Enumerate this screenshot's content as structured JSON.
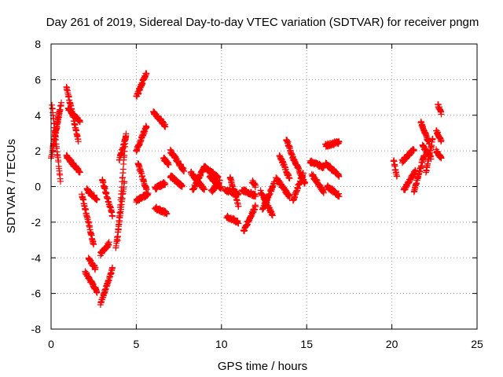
{
  "chart_data": {
    "type": "scatter",
    "title": "Day 261 of 2019, Sidereal Day-to-day VTEC variation (SDTVAR) for receiver pngm",
    "xlabel": "GPS time / hours",
    "ylabel": "SDTVAR / TECUs",
    "xlim": [
      0,
      25
    ],
    "ylim": [
      -8,
      8
    ],
    "xticks": [
      0,
      5,
      10,
      15,
      20,
      25
    ],
    "yticks": [
      -8,
      -6,
      -4,
      -2,
      0,
      2,
      4,
      6,
      8
    ],
    "xtick_labels": [
      "0",
      "5",
      "10",
      "15",
      "20",
      "25"
    ],
    "ytick_labels": [
      "-8",
      "-6",
      "-4",
      "-2",
      "0",
      "2",
      "4",
      "6",
      "8"
    ],
    "grid": true,
    "marker": "plus",
    "marker_color": "#ff0000",
    "tracks": [
      {
        "x": [
          0.0,
          0.6
        ],
        "y": [
          1.6,
          4.7
        ]
      },
      {
        "x": [
          0.05,
          0.55
        ],
        "y": [
          4.6,
          0.3
        ]
      },
      {
        "x": [
          0.1,
          0.5
        ],
        "y": [
          2.2,
          4.3
        ]
      },
      {
        "x": [
          0.9,
          1.6
        ],
        "y": [
          5.6,
          2.6
        ]
      },
      {
        "x": [
          1.0,
          1.7
        ],
        "y": [
          4.4,
          3.6
        ]
      },
      {
        "x": [
          0.9,
          1.7
        ],
        "y": [
          1.7,
          0.8
        ]
      },
      {
        "x": [
          1.8,
          2.5
        ],
        "y": [
          -0.4,
          -3.3
        ]
      },
      {
        "x": [
          2.0,
          2.7
        ],
        "y": [
          -4.8,
          -5.9
        ]
      },
      {
        "x": [
          2.2,
          2.6
        ],
        "y": [
          -4.0,
          -4.6
        ]
      },
      {
        "x": [
          2.1,
          2.7
        ],
        "y": [
          -0.2,
          -0.7
        ]
      },
      {
        "x": [
          2.9,
          3.6
        ],
        "y": [
          -6.6,
          -4.6
        ]
      },
      {
        "x": [
          2.9,
          3.4
        ],
        "y": [
          -3.8,
          -3.2
        ]
      },
      {
        "x": [
          3.0,
          3.6
        ],
        "y": [
          0.4,
          -1.6
        ]
      },
      {
        "x": [
          3.9,
          4.4
        ],
        "y": [
          -3.0,
          3.0
        ]
      },
      {
        "x": [
          3.8,
          4.3
        ],
        "y": [
          -3.5,
          0.3
        ]
      },
      {
        "x": [
          4.0,
          4.4
        ],
        "y": [
          1.5,
          2.8
        ]
      },
      {
        "x": [
          5.0,
          5.6
        ],
        "y": [
          5.0,
          6.4
        ]
      },
      {
        "x": [
          5.0,
          5.6
        ],
        "y": [
          2.0,
          3.4
        ]
      },
      {
        "x": [
          5.1,
          5.6
        ],
        "y": [
          1.3,
          -0.2
        ]
      },
      {
        "x": [
          5.0,
          5.7
        ],
        "y": [
          -0.8,
          -0.4
        ]
      },
      {
        "x": [
          6.0,
          6.7
        ],
        "y": [
          4.2,
          3.4
        ]
      },
      {
        "x": [
          6.1,
          6.8
        ],
        "y": [
          -1.2,
          -1.5
        ]
      },
      {
        "x": [
          6.1,
          6.7
        ],
        "y": [
          -0.1,
          0.2
        ]
      },
      {
        "x": [
          6.6,
          6.9
        ],
        "y": [
          1.6,
          1.2
        ]
      },
      {
        "x": [
          7.0,
          7.8
        ],
        "y": [
          2.0,
          0.9
        ]
      },
      {
        "x": [
          7.0,
          7.7
        ],
        "y": [
          0.6,
          0.0
        ]
      },
      {
        "x": [
          8.2,
          9.0
        ],
        "y": [
          0.8,
          -0.2
        ]
      },
      {
        "x": [
          8.3,
          9.0
        ],
        "y": [
          -0.2,
          1.1
        ]
      },
      {
        "x": [
          9.0,
          9.8
        ],
        "y": [
          1.1,
          0.5
        ]
      },
      {
        "x": [
          9.3,
          10.0
        ],
        "y": [
          0.6,
          -0.1
        ]
      },
      {
        "x": [
          9.4,
          9.9
        ],
        "y": [
          -0.3,
          0.3
        ]
      },
      {
        "x": [
          10.2,
          11.0
        ],
        "y": [
          -0.2,
          -0.4
        ]
      },
      {
        "x": [
          10.3,
          11.0
        ],
        "y": [
          -1.7,
          -2.0
        ]
      },
      {
        "x": [
          10.5,
          11.0
        ],
        "y": [
          0.5,
          -1.1
        ]
      },
      {
        "x": [
          11.2,
          12.0
        ],
        "y": [
          -0.2,
          -0.5
        ]
      },
      {
        "x": [
          11.3,
          12.0
        ],
        "y": [
          -2.5,
          -1.1
        ]
      },
      {
        "x": [
          11.8,
          12.0
        ],
        "y": [
          0.3,
          0.0
        ]
      },
      {
        "x": [
          12.3,
          13.0
        ],
        "y": [
          -0.3,
          -1.6
        ]
      },
      {
        "x": [
          12.4,
          13.1
        ],
        "y": [
          -1.3,
          0.2
        ]
      },
      {
        "x": [
          13.2,
          14.0
        ],
        "y": [
          0.5,
          -0.6
        ]
      },
      {
        "x": [
          13.4,
          14.0
        ],
        "y": [
          1.8,
          0.4
        ]
      },
      {
        "x": [
          13.8,
          14.1
        ],
        "y": [
          2.7,
          1.9
        ]
      },
      {
        "x": [
          14.1,
          14.9
        ],
        "y": [
          1.8,
          0.2
        ]
      },
      {
        "x": [
          14.2,
          14.8
        ],
        "y": [
          -0.8,
          0.8
        ]
      },
      {
        "x": [
          15.2,
          16.0
        ],
        "y": [
          1.4,
          1.1
        ]
      },
      {
        "x": [
          15.3,
          16.0
        ],
        "y": [
          0.7,
          -0.3
        ]
      },
      {
        "x": [
          16.1,
          16.9
        ],
        "y": [
          2.3,
          2.5
        ]
      },
      {
        "x": [
          16.1,
          16.9
        ],
        "y": [
          1.3,
          0.6
        ]
      },
      {
        "x": [
          16.2,
          16.9
        ],
        "y": [
          0.0,
          -0.5
        ]
      },
      {
        "x": [
          20.1,
          20.3
        ],
        "y": [
          1.5,
          0.5
        ]
      },
      {
        "x": [
          20.6,
          21.3
        ],
        "y": [
          1.4,
          2.1
        ]
      },
      {
        "x": [
          20.7,
          21.4
        ],
        "y": [
          -0.2,
          0.9
        ]
      },
      {
        "x": [
          21.3,
          21.9
        ],
        "y": [
          -0.3,
          1.8
        ]
      },
      {
        "x": [
          21.7,
          22.2
        ],
        "y": [
          3.6,
          2.4
        ]
      },
      {
        "x": [
          21.8,
          22.3
        ],
        "y": [
          2.3,
          1.6
        ]
      },
      {
        "x": [
          22.0,
          22.4
        ],
        "y": [
          0.8,
          2.7
        ]
      },
      {
        "x": [
          22.7,
          22.9
        ],
        "y": [
          4.6,
          4.1
        ]
      },
      {
        "x": [
          22.6,
          22.9
        ],
        "y": [
          3.2,
          2.5
        ]
      },
      {
        "x": [
          22.6,
          22.9
        ],
        "y": [
          2.0,
          1.6
        ]
      }
    ]
  }
}
